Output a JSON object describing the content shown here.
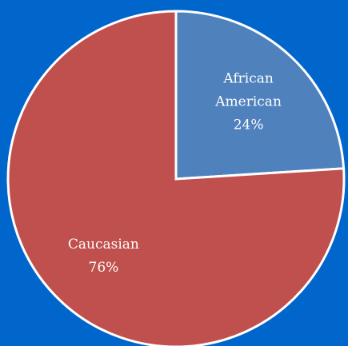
{
  "chart_data": {
    "type": "pie",
    "slices": [
      {
        "label_lines": [
          "African",
          "American"
        ],
        "value": 24,
        "value_label": "24%",
        "color": "#4f81bd"
      },
      {
        "label_lines": [
          "Caucasian"
        ],
        "value": 76,
        "value_label": "76%",
        "color": "#c0504d"
      }
    ],
    "start_angle_deg": 0,
    "direction": "clockwise",
    "slice_border_color": "#ffffff",
    "background_color": "#0066cc",
    "legend": "none",
    "data_labels": "inside"
  }
}
